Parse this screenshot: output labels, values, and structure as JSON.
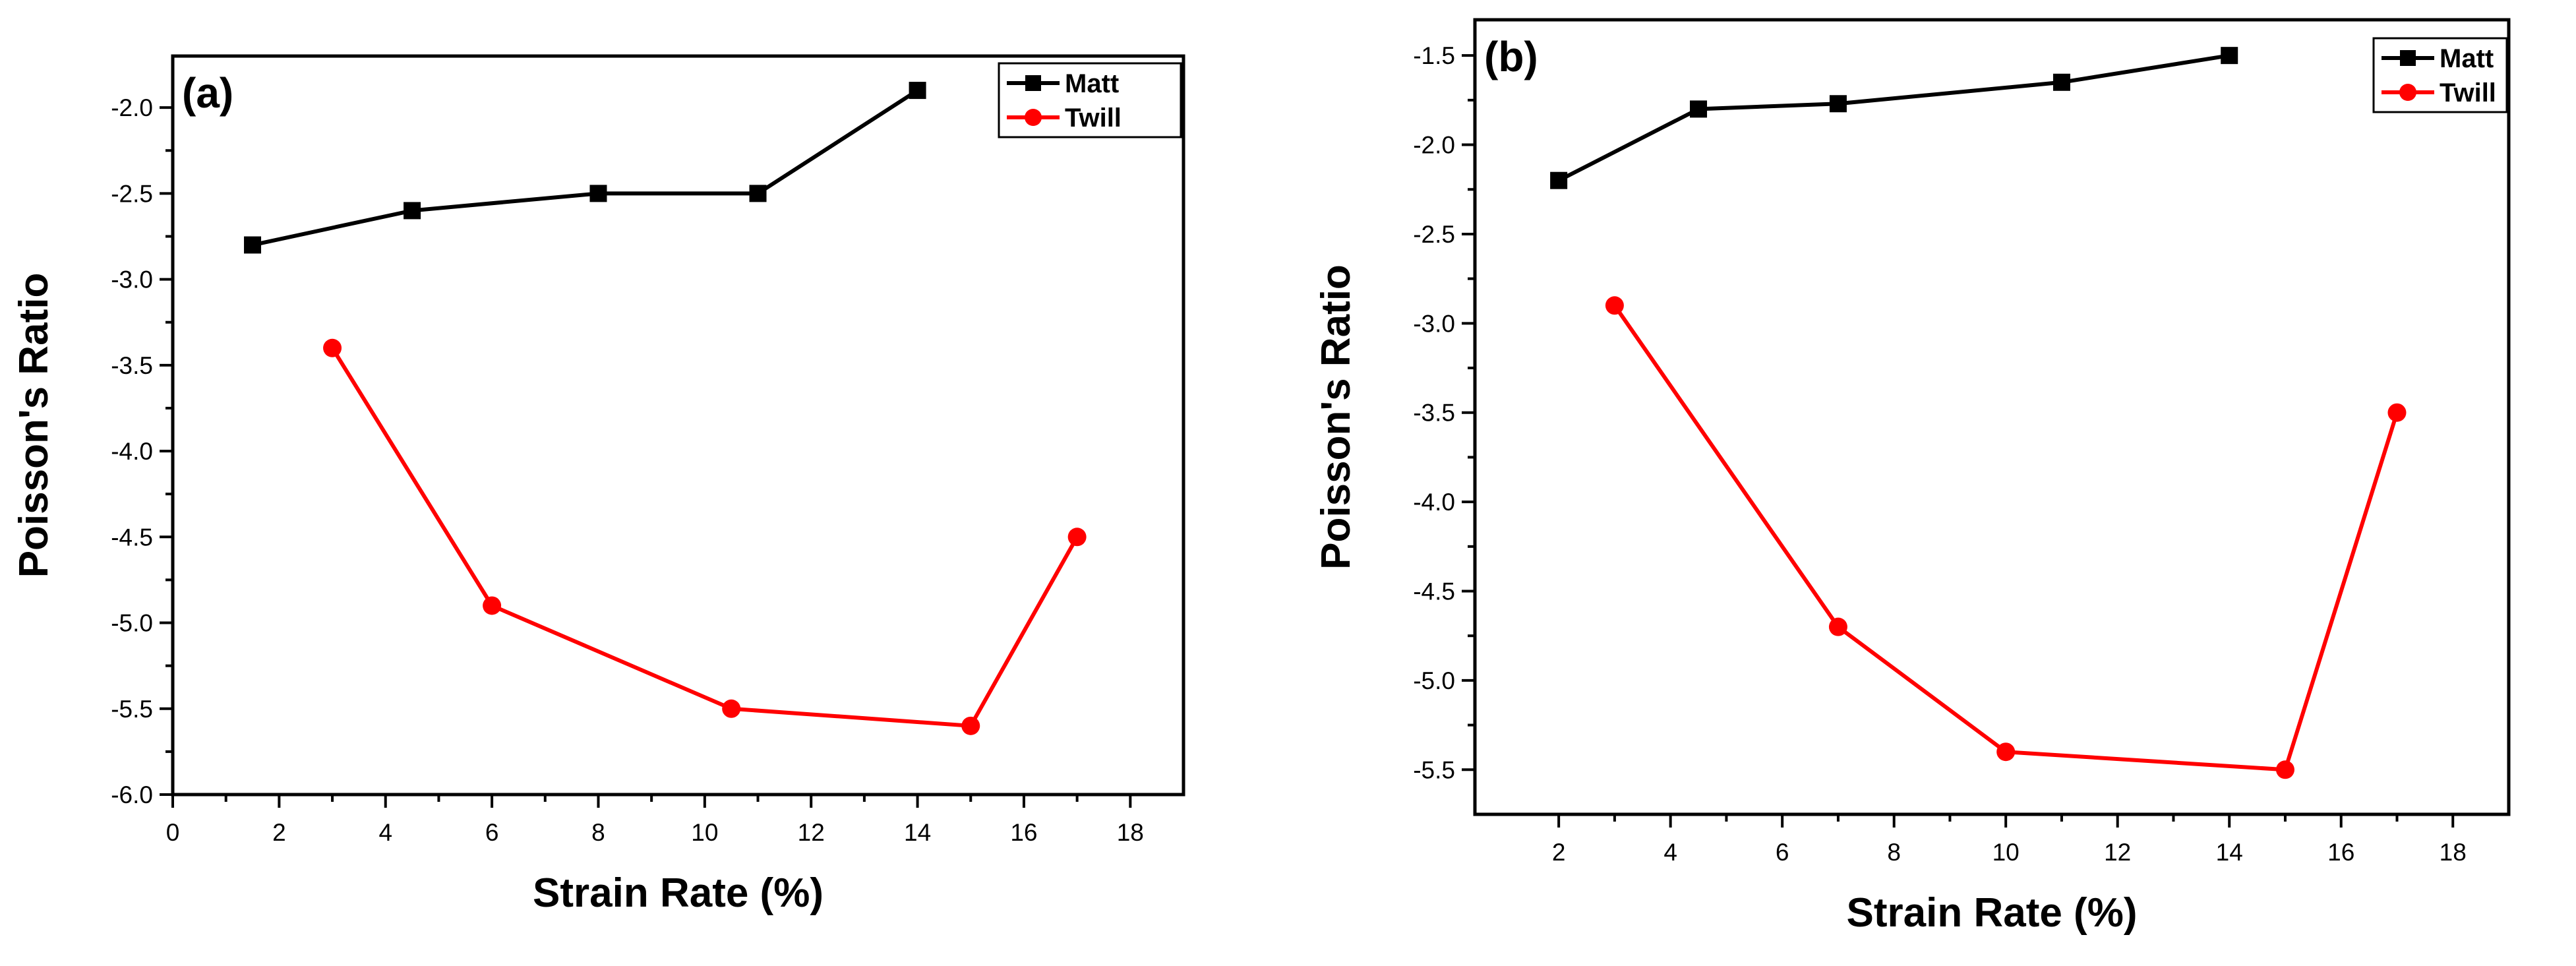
{
  "chart_data": [
    {
      "type": "line",
      "panel_label": "(a)",
      "xlabel": "Strain Rate (%)",
      "ylabel": "Poisson's Ratio",
      "xlim": [
        0,
        19
      ],
      "ylim": [
        -6.0,
        -1.7
      ],
      "xticks": [
        0,
        2,
        4,
        6,
        8,
        10,
        12,
        14,
        16,
        18
      ],
      "xtick_labels": [
        "0",
        "2",
        "4",
        "6",
        "8",
        "10",
        "12",
        "14",
        "16",
        "18"
      ],
      "yticks": [
        -6.0,
        -5.5,
        -5.0,
        -4.5,
        -4.0,
        -3.5,
        -3.0,
        -2.5,
        -2.0
      ],
      "ytick_labels": [
        "-6.0",
        "-5.5",
        "-5.0",
        "-4.5",
        "-4.0",
        "-3.5",
        "-3.0",
        "-2.5",
        "-2.0"
      ],
      "legend_position": "top-right",
      "series": [
        {
          "name": "Matt",
          "color": "#000000",
          "marker": "square",
          "x": [
            1.5,
            4.5,
            8,
            11,
            14
          ],
          "y": [
            -2.8,
            -2.6,
            -2.5,
            -2.5,
            -1.9
          ]
        },
        {
          "name": "Twill",
          "color": "#ff0000",
          "marker": "circle",
          "x": [
            3,
            6,
            10.5,
            15,
            17
          ],
          "y": [
            -3.4,
            -4.9,
            -5.5,
            -5.6,
            -4.5
          ]
        }
      ]
    },
    {
      "type": "line",
      "panel_label": "(b)",
      "xlabel": "Strain Rate (%)",
      "ylabel": "Poisson's Ratio",
      "xlim": [
        0.5,
        19
      ],
      "ylim": [
        -5.75,
        -1.3
      ],
      "xticks": [
        2,
        4,
        6,
        8,
        10,
        12,
        14,
        16,
        18
      ],
      "xtick_labels": [
        "2",
        "4",
        "6",
        "8",
        "10",
        "12",
        "14",
        "16",
        "18"
      ],
      "yticks": [
        -5.5,
        -5.0,
        -4.5,
        -4.0,
        -3.5,
        -3.0,
        -2.5,
        -2.0,
        -1.5
      ],
      "ytick_labels": [
        "-5.5",
        "-5.0",
        "-4.5",
        "-4.0",
        "-3.5",
        "-3.0",
        "-2.5",
        "-2.0",
        "-1.5"
      ],
      "legend_position": "top-right",
      "series": [
        {
          "name": "Matt",
          "color": "#000000",
          "marker": "square",
          "x": [
            2,
            4.5,
            7,
            11,
            14
          ],
          "y": [
            -2.2,
            -1.8,
            -1.77,
            -1.65,
            -1.5
          ]
        },
        {
          "name": "Twill",
          "color": "#ff0000",
          "marker": "circle",
          "x": [
            3,
            7,
            10,
            15,
            17
          ],
          "y": [
            -2.9,
            -4.7,
            -5.4,
            -5.5,
            -3.5
          ]
        }
      ]
    }
  ]
}
